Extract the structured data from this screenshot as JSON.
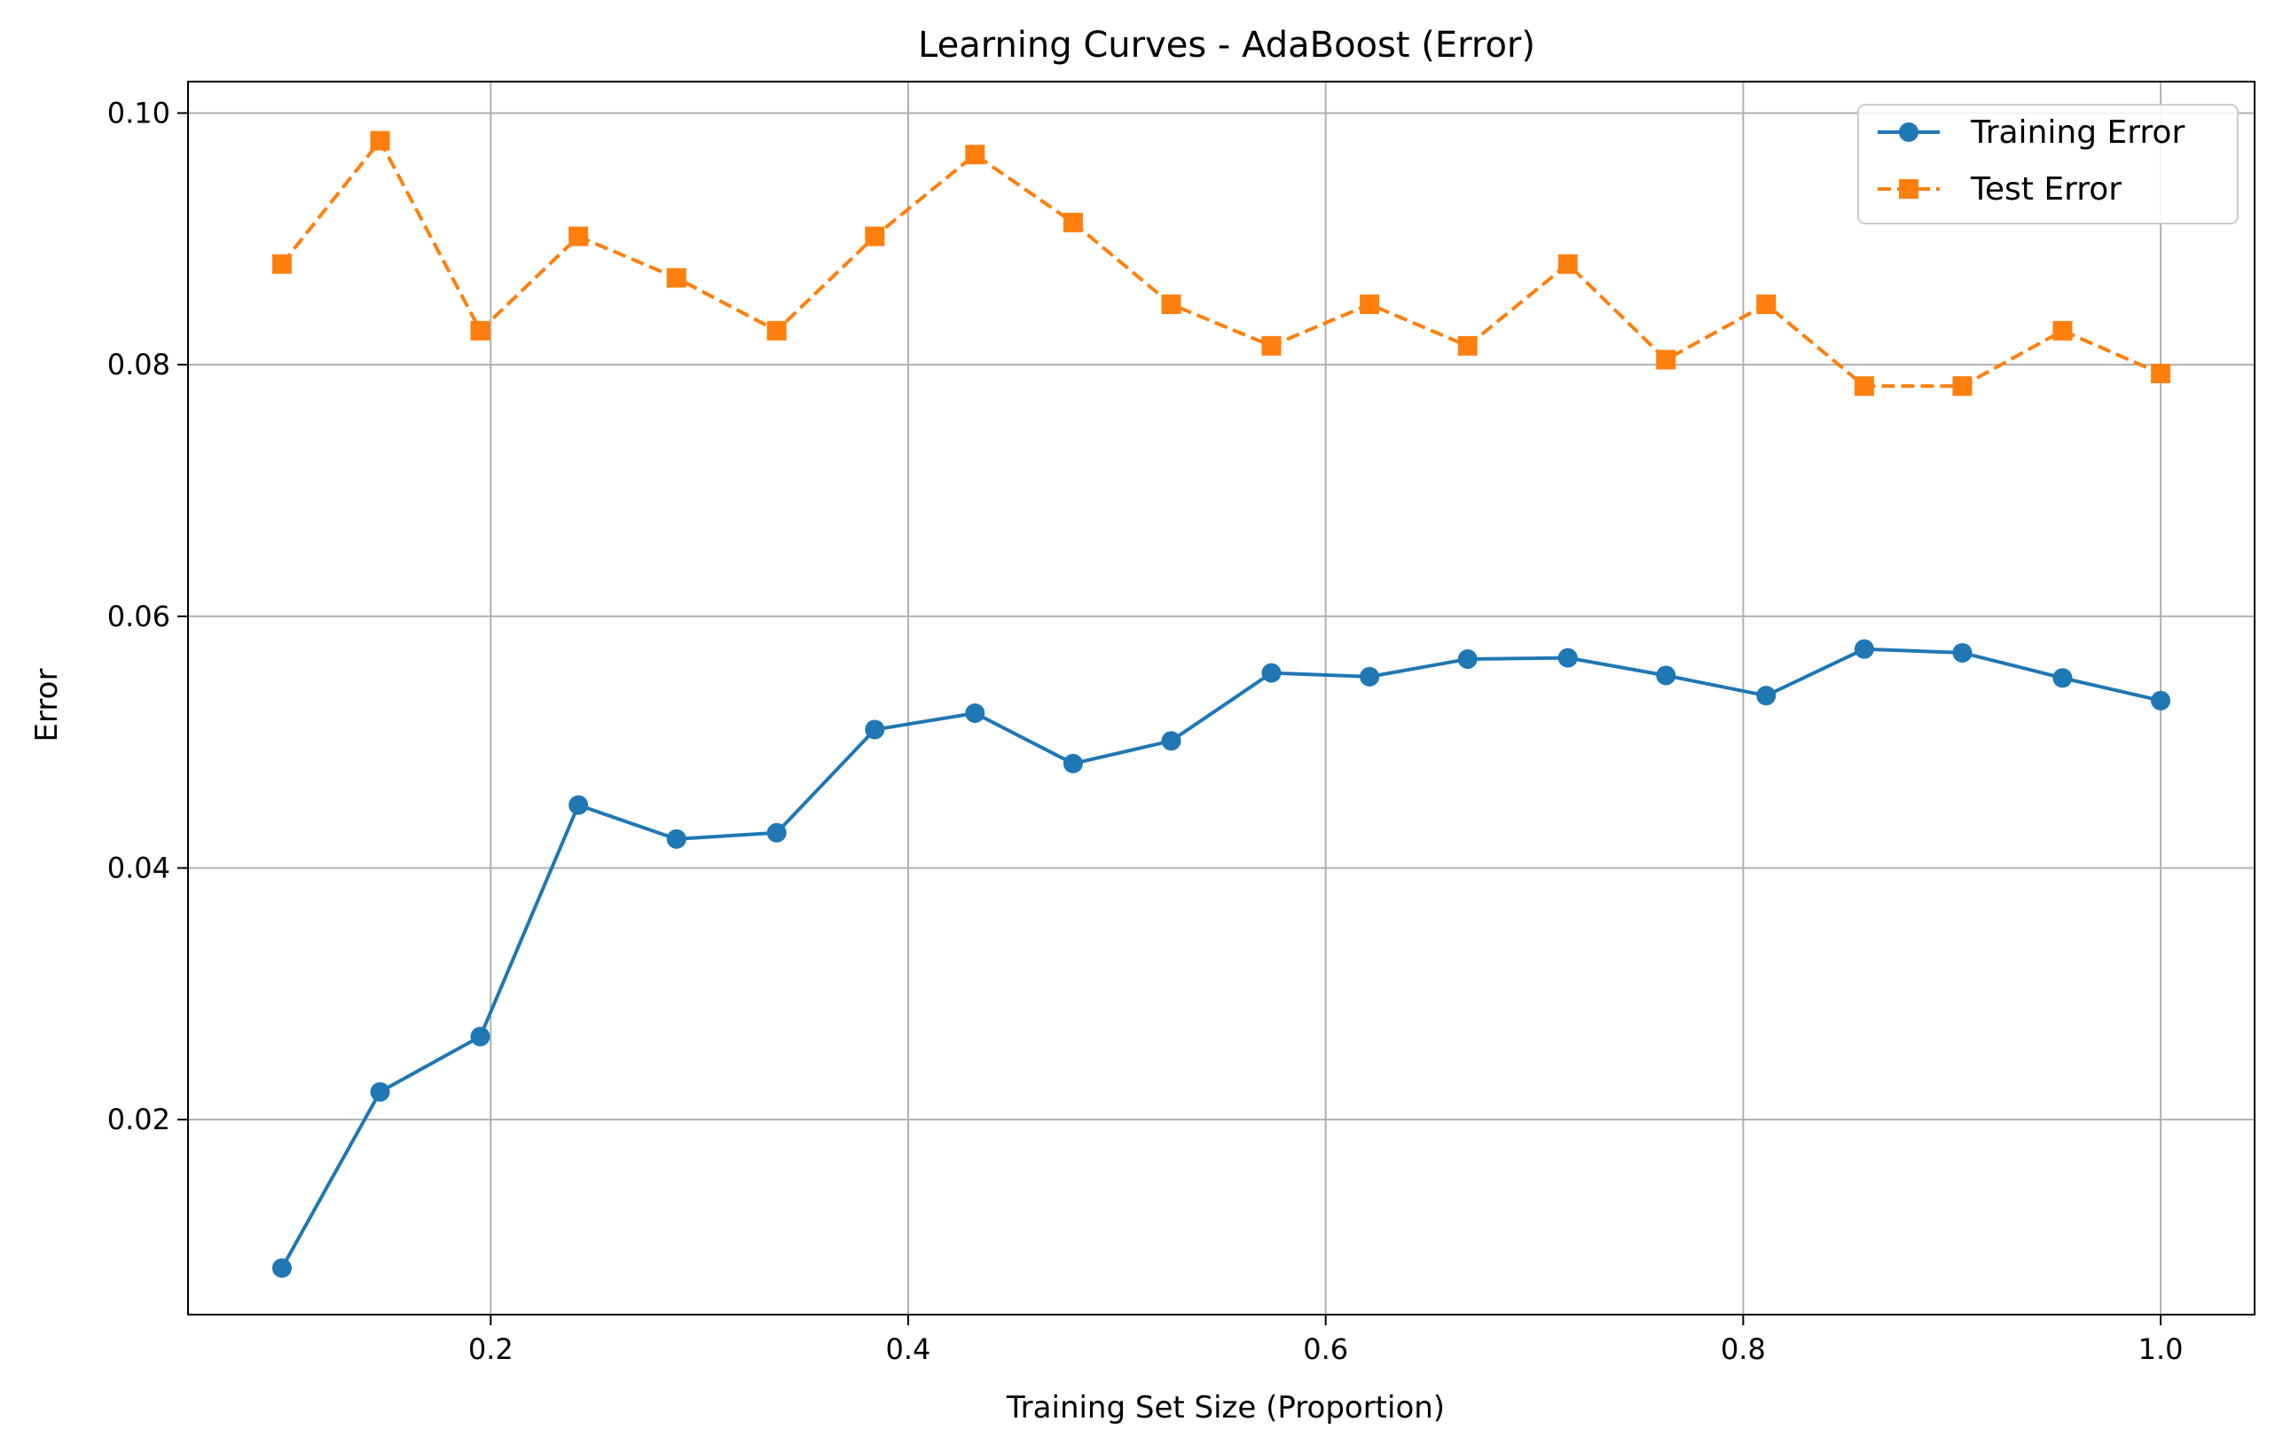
{
  "chart_data": {
    "type": "line",
    "title": "Learning Curves - AdaBoost (Error)",
    "xlabel": "Training Set Size (Proportion)",
    "ylabel": "Error",
    "xlim": [
      0.055,
      1.045
    ],
    "ylim": [
      0.0045,
      0.1025
    ],
    "x_ticks": [
      0.2,
      0.4,
      0.6,
      0.8,
      1.0
    ],
    "x_tick_labels": [
      "0.2",
      "0.4",
      "0.6",
      "0.8",
      "1.0"
    ],
    "y_ticks": [
      0.02,
      0.04,
      0.06,
      0.08,
      0.1
    ],
    "y_tick_labels": [
      "0.02",
      "0.04",
      "0.06",
      "0.08",
      "0.10"
    ],
    "grid": true,
    "legend_position": "top-right",
    "x": [
      0.1,
      0.147,
      0.195,
      0.242,
      0.289,
      0.337,
      0.384,
      0.432,
      0.479,
      0.526,
      0.574,
      0.621,
      0.668,
      0.716,
      0.763,
      0.811,
      0.858,
      0.905,
      0.953,
      1.0
    ],
    "series": [
      {
        "name": "Training Error",
        "color": "#1f77b4",
        "line_style": "solid",
        "marker": "circle",
        "values": [
          0.0082,
          0.0222,
          0.0266,
          0.045,
          0.0423,
          0.0428,
          0.051,
          0.0523,
          0.0483,
          0.0501,
          0.0555,
          0.0552,
          0.0566,
          0.0567,
          0.0553,
          0.0537,
          0.0574,
          0.0571,
          0.0551,
          0.0533
        ]
      },
      {
        "name": "Test Error",
        "color": "#ff7f0e",
        "line_style": "dashed",
        "marker": "square",
        "values": [
          0.088,
          0.0978,
          0.0827,
          0.0902,
          0.0869,
          0.0827,
          0.0902,
          0.0967,
          0.0913,
          0.0848,
          0.0815,
          0.0848,
          0.0815,
          0.088,
          0.0804,
          0.0848,
          0.0783,
          0.0783,
          0.0827,
          0.0793
        ]
      }
    ]
  }
}
